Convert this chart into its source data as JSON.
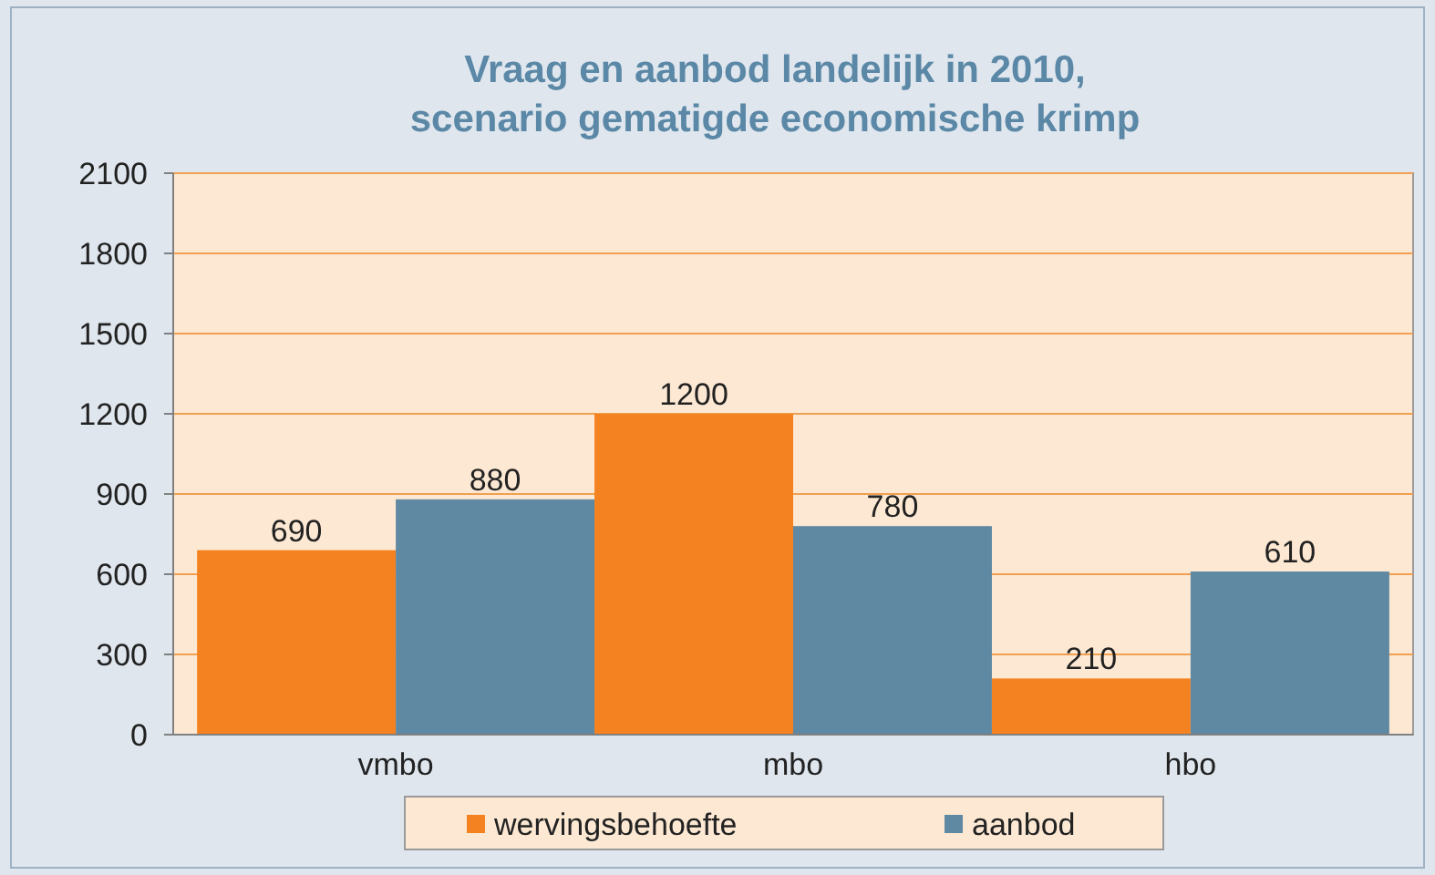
{
  "chart_data": {
    "type": "bar",
    "title": "Vraag en aanbod landelijk in 2010,\nscenario gematigde economische krimp",
    "categories": [
      "vmbo",
      "mbo",
      "hbo"
    ],
    "series": [
      {
        "name": "wervingsbehoefte",
        "color": "#f58220",
        "values": [
          690,
          1200,
          210
        ]
      },
      {
        "name": "aanbod",
        "color": "#5f88a2",
        "values": [
          880,
          780,
          610
        ]
      }
    ],
    "ylim": [
      0,
      2100
    ],
    "yticks": [
      0,
      300,
      600,
      900,
      1200,
      1500,
      1800,
      2100
    ],
    "grid": "y",
    "data_labels": true,
    "legend": "bottom"
  }
}
